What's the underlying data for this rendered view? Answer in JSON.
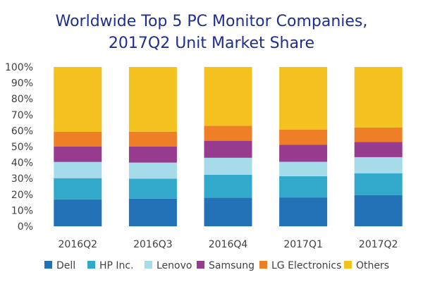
{
  "chart_data": {
    "type": "bar",
    "stacked": true,
    "title": [
      "Worldwide Top 5 PC Monitor Companies,",
      "2017Q2 Unit Market Share"
    ],
    "categories": [
      "2016Q2",
      "2016Q3",
      "2016Q4",
      "2017Q1",
      "2017Q2"
    ],
    "ylim": [
      0,
      100
    ],
    "yticks": [
      0,
      10,
      20,
      30,
      40,
      50,
      60,
      70,
      80,
      90,
      100
    ],
    "ytick_labels": [
      "0%",
      "10%",
      "20%",
      "30%",
      "40%",
      "50%",
      "60%",
      "70%",
      "80%",
      "90%",
      "100%"
    ],
    "legend_position": "bottom",
    "series": [
      {
        "name": "Dell",
        "color": "#2372b8",
        "values": [
          16.9,
          17.3,
          18.0,
          18.1,
          19.5
        ]
      },
      {
        "name": "HP Inc.",
        "color": "#32a8cb",
        "values": [
          13.3,
          12.6,
          14.4,
          13.3,
          13.8
        ]
      },
      {
        "name": "Lenovo",
        "color": "#a6dbe9",
        "values": [
          10.2,
          10.1,
          10.6,
          9.1,
          10.1
        ]
      },
      {
        "name": "Samsung",
        "color": "#973b8e",
        "values": [
          9.6,
          10.0,
          10.7,
          10.6,
          9.5
        ]
      },
      {
        "name": "LG Electronics",
        "color": "#ef7f26",
        "values": [
          9.3,
          9.4,
          9.4,
          9.6,
          9.1
        ]
      },
      {
        "name": "Others",
        "color": "#f4c21f",
        "values": [
          40.7,
          40.6,
          36.9,
          39.3,
          38.0
        ]
      }
    ]
  }
}
